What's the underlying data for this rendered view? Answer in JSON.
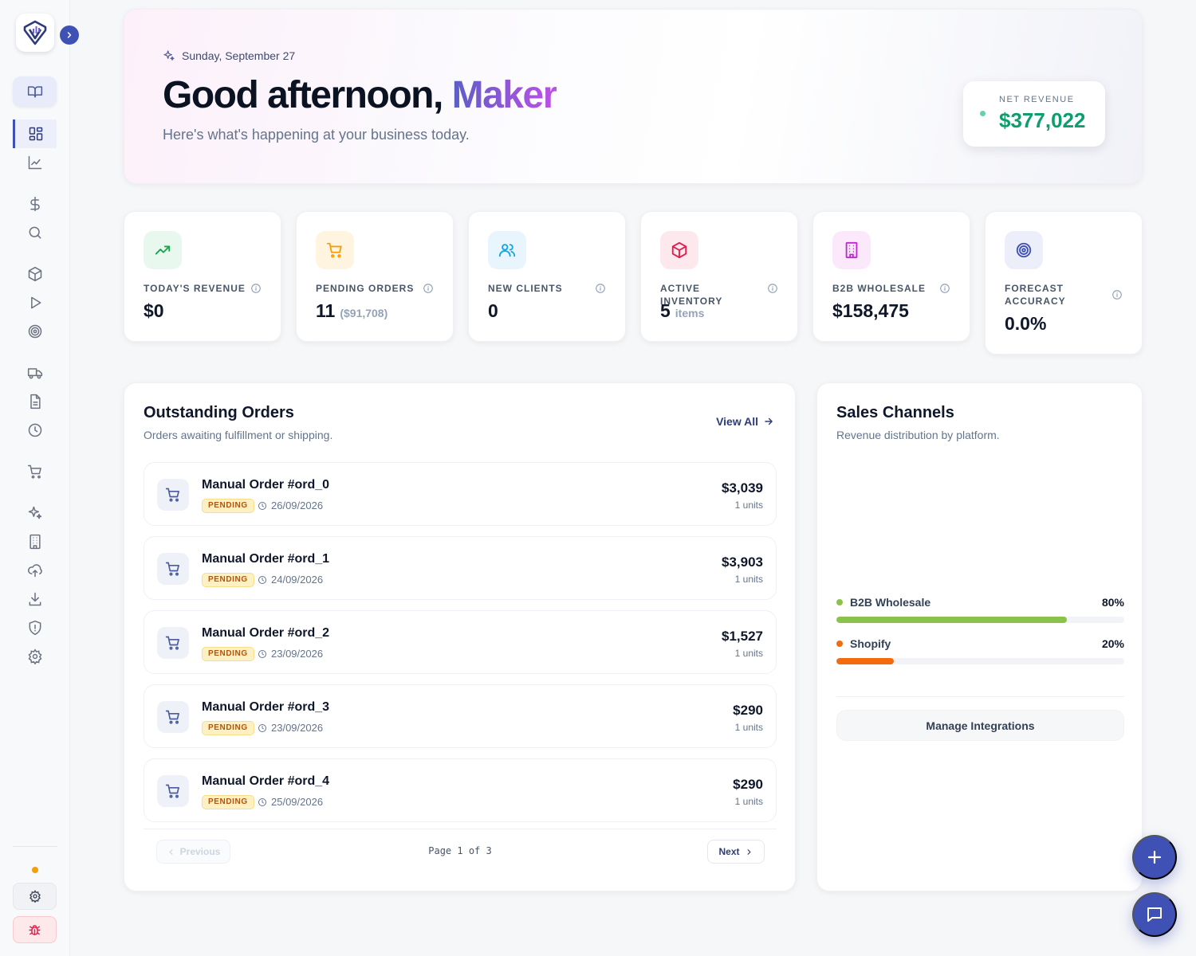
{
  "hero": {
    "date": "Sunday, September 27",
    "greeting": "Good afternoon, ",
    "name": "Maker",
    "subtitle": "Here's what's happening at your business today.",
    "net_revenue_label": "NET REVENUE",
    "net_revenue_value": "$377,022"
  },
  "stats": [
    {
      "label": "TODAY'S REVENUE",
      "value": "$0",
      "extra": "",
      "icon": "trending-up-icon",
      "color": "#16a34a",
      "bg": "#e8f8ef"
    },
    {
      "label": "PENDING ORDERS",
      "value": "11",
      "extra": "($91,708)",
      "icon": "cart-icon",
      "color": "#f59e0b",
      "bg": "#fff4e0"
    },
    {
      "label": "NEW CLIENTS",
      "value": "0",
      "extra": "",
      "icon": "users-icon",
      "color": "#0ea5e9",
      "bg": "#e8f5fd"
    },
    {
      "label": "ACTIVE INVENTORY",
      "value": "5",
      "extra": "items",
      "icon": "box-icon",
      "color": "#e11d48",
      "bg": "#fde8ee"
    },
    {
      "label": "B2B WHOLESALE",
      "value": "$158,475",
      "extra": "",
      "icon": "building-icon",
      "color": "#c026d3",
      "bg": "#fbe9fb"
    },
    {
      "label": "FORECAST ACCURACY",
      "value": "0.0%",
      "extra": "",
      "icon": "target-icon",
      "color": "#3f51b5",
      "bg": "#eceefa"
    }
  ],
  "orders_panel": {
    "title": "Outstanding Orders",
    "subtitle": "Orders awaiting fulfillment or shipping.",
    "view_all": "View All",
    "orders": [
      {
        "title": "Manual Order #ord_0",
        "status": "PENDING",
        "date": "26/09/2026",
        "amount": "$3,039",
        "units": "1 units"
      },
      {
        "title": "Manual Order #ord_1",
        "status": "PENDING",
        "date": "24/09/2026",
        "amount": "$3,903",
        "units": "1 units"
      },
      {
        "title": "Manual Order #ord_2",
        "status": "PENDING",
        "date": "23/09/2026",
        "amount": "$1,527",
        "units": "1 units"
      },
      {
        "title": "Manual Order #ord_3",
        "status": "PENDING",
        "date": "23/09/2026",
        "amount": "$290",
        "units": "1 units"
      },
      {
        "title": "Manual Order #ord_4",
        "status": "PENDING",
        "date": "25/09/2026",
        "amount": "$290",
        "units": "1 units"
      }
    ],
    "pager": {
      "previous": "Previous",
      "page_text": "Page 1 of 3",
      "next": "Next"
    }
  },
  "channels_panel": {
    "title": "Sales Channels",
    "subtitle": "Revenue distribution by platform.",
    "channels": [
      {
        "name": "B2B Wholesale",
        "pct_label": "80%",
        "fraction": 0.8,
        "color": "#8bc34a"
      },
      {
        "name": "Shopify",
        "pct_label": "20%",
        "fraction": 0.2,
        "color": "#f26b0f"
      }
    ],
    "manage_label": "Manage Integrations"
  },
  "sidebar": {
    "icons": [
      "book-icon",
      "dashboard-icon",
      "chart-line-icon",
      "dollar-icon",
      "search-icon",
      "box-icon",
      "play-icon",
      "target-icon",
      "truck-icon",
      "document-icon",
      "clock-icon",
      "cart-icon",
      "sparkles-icon",
      "building-icon",
      "cloud-upload-icon",
      "download-icon",
      "shield-icon",
      "settings-icon"
    ]
  }
}
